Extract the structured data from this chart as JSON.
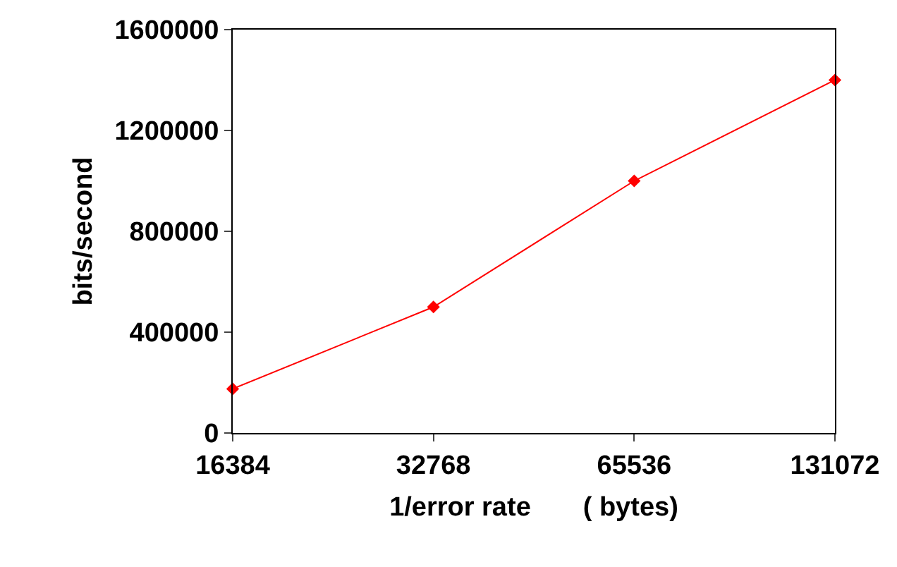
{
  "chart_data": {
    "type": "line",
    "xlabel": "1/error rate       ( bytes)",
    "ylabel": "bits/second",
    "categories": [
      "16384",
      "32768",
      "65536",
      "131072"
    ],
    "series": [
      {
        "color": "#ff0000",
        "values": [
          175000,
          500000,
          1000000,
          1400000
        ]
      }
    ],
    "ylim": [
      0,
      1600000
    ],
    "yticks": [
      0,
      400000,
      800000,
      1200000,
      1600000
    ],
    "legend": false,
    "marker": "diamond",
    "line_style": "solid"
  }
}
